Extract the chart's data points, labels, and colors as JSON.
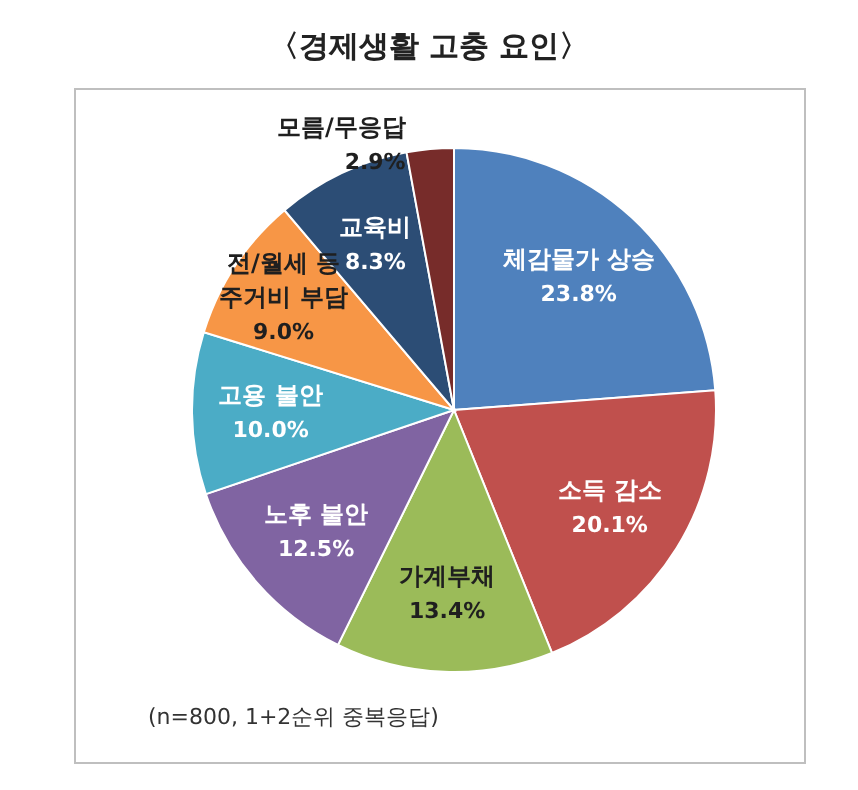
{
  "chart_data": {
    "type": "pie",
    "title": "〈경제생활 고충 요인〉",
    "categories": [
      "체감물가 상승",
      "소득 감소",
      "가계부채",
      "노후 불안",
      "고용 불안",
      "전/월세 등 주거비 부담",
      "교육비",
      "모름/무응답"
    ],
    "values": [
      23.8,
      20.1,
      13.4,
      12.5,
      10.0,
      9.0,
      8.3,
      2.9
    ],
    "value_labels": [
      "23.8%",
      "20.1%",
      "13.4%",
      "12.5%",
      "10.0%",
      "9.0%",
      "8.3%",
      "2.9%"
    ],
    "colors": [
      "#4f81bd",
      "#c0504d",
      "#9bbb59",
      "#8064a2",
      "#4bacc6",
      "#f79646",
      "#2c4d75",
      "#772c2a"
    ],
    "annotations": [
      "(n=800, 1+2순위 중복응답)"
    ],
    "legend": false
  }
}
